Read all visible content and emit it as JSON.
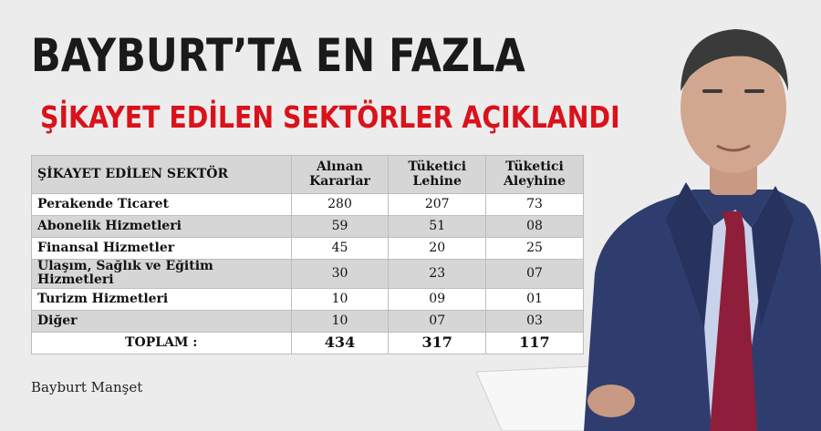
{
  "headline": "BAYBURT’TA EN FAZLA",
  "subheadline": "ŞİKAYET EDİLEN SEKTÖRLER AÇIKLANDI",
  "table": {
    "headers": [
      "ŞİKAYET EDİLEN SEKTÖR",
      "Alınan Kararlar",
      "Tüketici Lehine",
      "Tüketici Aleyhine"
    ],
    "rows": [
      {
        "sector": "Perakende Ticaret",
        "alinan": "280",
        "lehine": "207",
        "aleyhine": "73"
      },
      {
        "sector": "Abonelik Hizmetleri",
        "alinan": "59",
        "lehine": "51",
        "aleyhine": "08"
      },
      {
        "sector": "Finansal Hizmetler",
        "alinan": "45",
        "lehine": "20",
        "aleyhine": "25"
      },
      {
        "sector": "Ulaşım, Sağlık ve Eğitim Hizmetleri",
        "alinan": "30",
        "lehine": "23",
        "aleyhine": "07"
      },
      {
        "sector": "Turizm Hizmetleri",
        "alinan": "10",
        "lehine": "09",
        "aleyhine": "01"
      },
      {
        "sector": "Diğer",
        "alinan": "10",
        "lehine": "07",
        "aleyhine": "03"
      }
    ],
    "total": {
      "label": "TOPLAM :",
      "alinan": "434",
      "lehine": "317",
      "aleyhine": "117"
    }
  },
  "credit": "Bayburt Manşet",
  "colors": {
    "accent": "#d9121b",
    "suit": "#2f3d6e",
    "tie": "#8e1e3a",
    "shirt": "#c8d2ea"
  }
}
